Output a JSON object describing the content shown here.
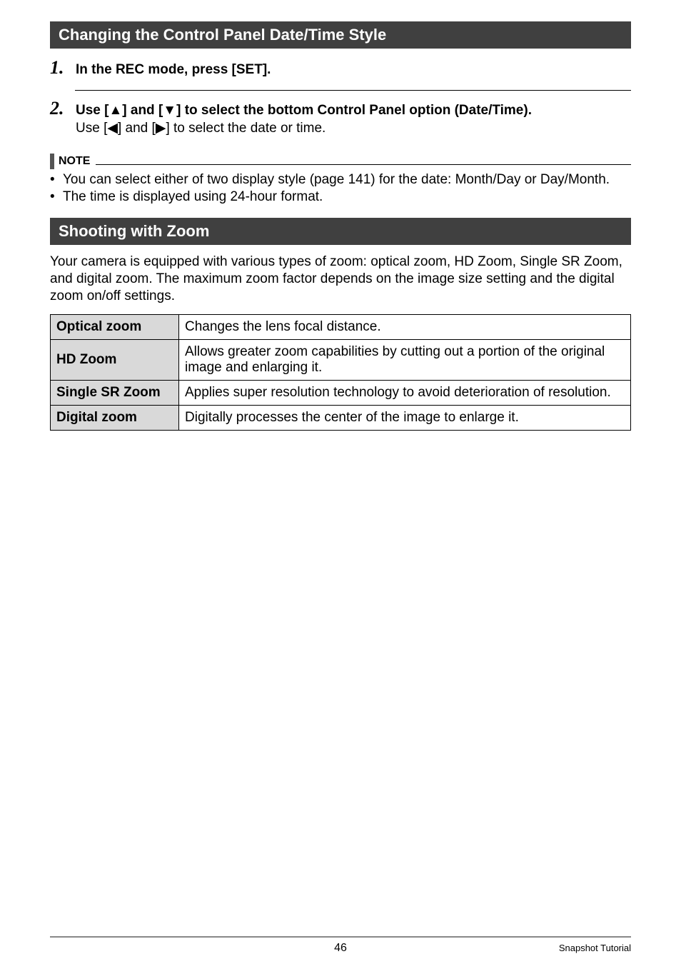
{
  "section1": {
    "heading": "Changing the Control Panel Date/Time Style",
    "step1": {
      "num": "1.",
      "title": "In the REC mode, press [SET]."
    },
    "step2": {
      "num": "2.",
      "title_prefix": "Use [",
      "title_mid1": "] and [",
      "title_mid2": "] to select the bottom Control Panel option (Date/Time).",
      "sub_prefix": "Use [",
      "sub_mid1": "] and [",
      "sub_mid2": "] to select the date or time."
    }
  },
  "note": {
    "label": "NOTE",
    "bullets": [
      "You can select either of two display style (page 141) for the date: Month/Day or Day/Month.",
      "The time is displayed using 24-hour format."
    ]
  },
  "section2": {
    "heading": "Shooting with Zoom",
    "intro": "Your camera is equipped with various types of zoom: optical zoom, HD Zoom, Single SR Zoom, and digital zoom. The maximum zoom factor depends on the image size setting and the digital zoom on/off settings.",
    "rows": [
      {
        "name": "Optical zoom",
        "desc": "Changes the lens focal distance."
      },
      {
        "name": "HD Zoom",
        "desc": "Allows greater zoom capabilities by cutting out a portion of the original image and enlarging it."
      },
      {
        "name": "Single SR Zoom",
        "desc": "Applies super resolution technology to avoid deterioration of resolution."
      },
      {
        "name": "Digital zoom",
        "desc": "Digitally processes the center of the image to enlarge it."
      }
    ]
  },
  "glyphs": {
    "up": "▲",
    "down": "▼",
    "left": "◀",
    "right": "▶",
    "bullet": "•"
  },
  "footer": {
    "page": "46",
    "label": "Snapshot Tutorial"
  },
  "colors": {
    "heading_bg": "#404040",
    "table_header_bg": "#d9d9d9",
    "footer_rule": "#888888"
  }
}
